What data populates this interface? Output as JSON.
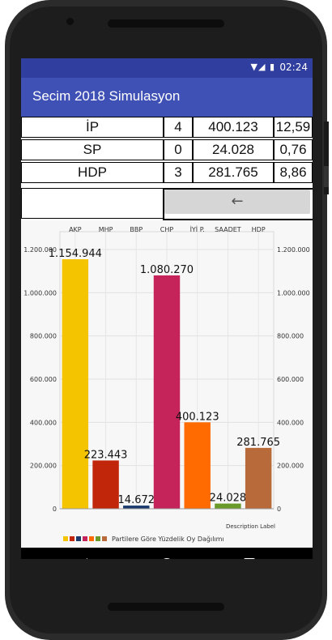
{
  "status_bar": {
    "time": "02:24",
    "icons": [
      "wifi-icon",
      "signal-icon",
      "battery-icon"
    ]
  },
  "app_bar": {
    "title": "Secim 2018 Simulasyon"
  },
  "table": {
    "rows": [
      {
        "party": "İP",
        "seats": "4",
        "votes": "400.123",
        "percent": "12,59"
      },
      {
        "party": "SP",
        "seats": "0",
        "votes": "24.028",
        "percent": "0,76"
      },
      {
        "party": "HDP",
        "seats": "3",
        "votes": "281.765",
        "percent": "8,86"
      }
    ],
    "back_button_icon": "arrow-left-icon",
    "back_button_glyph": "←"
  },
  "chart_data": {
    "type": "bar",
    "categories": [
      "AKP",
      "MHP",
      "BBP",
      "CHP",
      "İYİ P.",
      "SAADET",
      "HDP"
    ],
    "values": [
      1154944,
      223443,
      14672,
      1080270,
      400123,
      24028,
      281765
    ],
    "value_labels": [
      "1.154.944",
      "223.443",
      "14.672",
      "1.080.270",
      "400.123",
      "24.028",
      "281.765"
    ],
    "colors": [
      "#f5c400",
      "#c1260a",
      "#1a3a6e",
      "#c4245a",
      "#ff6b00",
      "#6a9a2a",
      "#b86a3a"
    ],
    "ylim": [
      0,
      1200000
    ],
    "y_ticks": [
      "0",
      "200.000",
      "400.000",
      "600.000",
      "800.000",
      "1.000.000",
      "1.200.000"
    ],
    "y_tick_values": [
      0,
      200000,
      400000,
      600000,
      800000,
      1000000,
      1200000
    ],
    "description": "Description Label",
    "legend_label": "Partilere Göre Yüzdelik Oy Dağılımı",
    "legend_placement": "bottom-left",
    "grid": true
  },
  "nav_bar": {
    "back_icon": "nav-back-icon",
    "home_icon": "nav-home-icon",
    "recent_icon": "nav-recent-icon"
  }
}
